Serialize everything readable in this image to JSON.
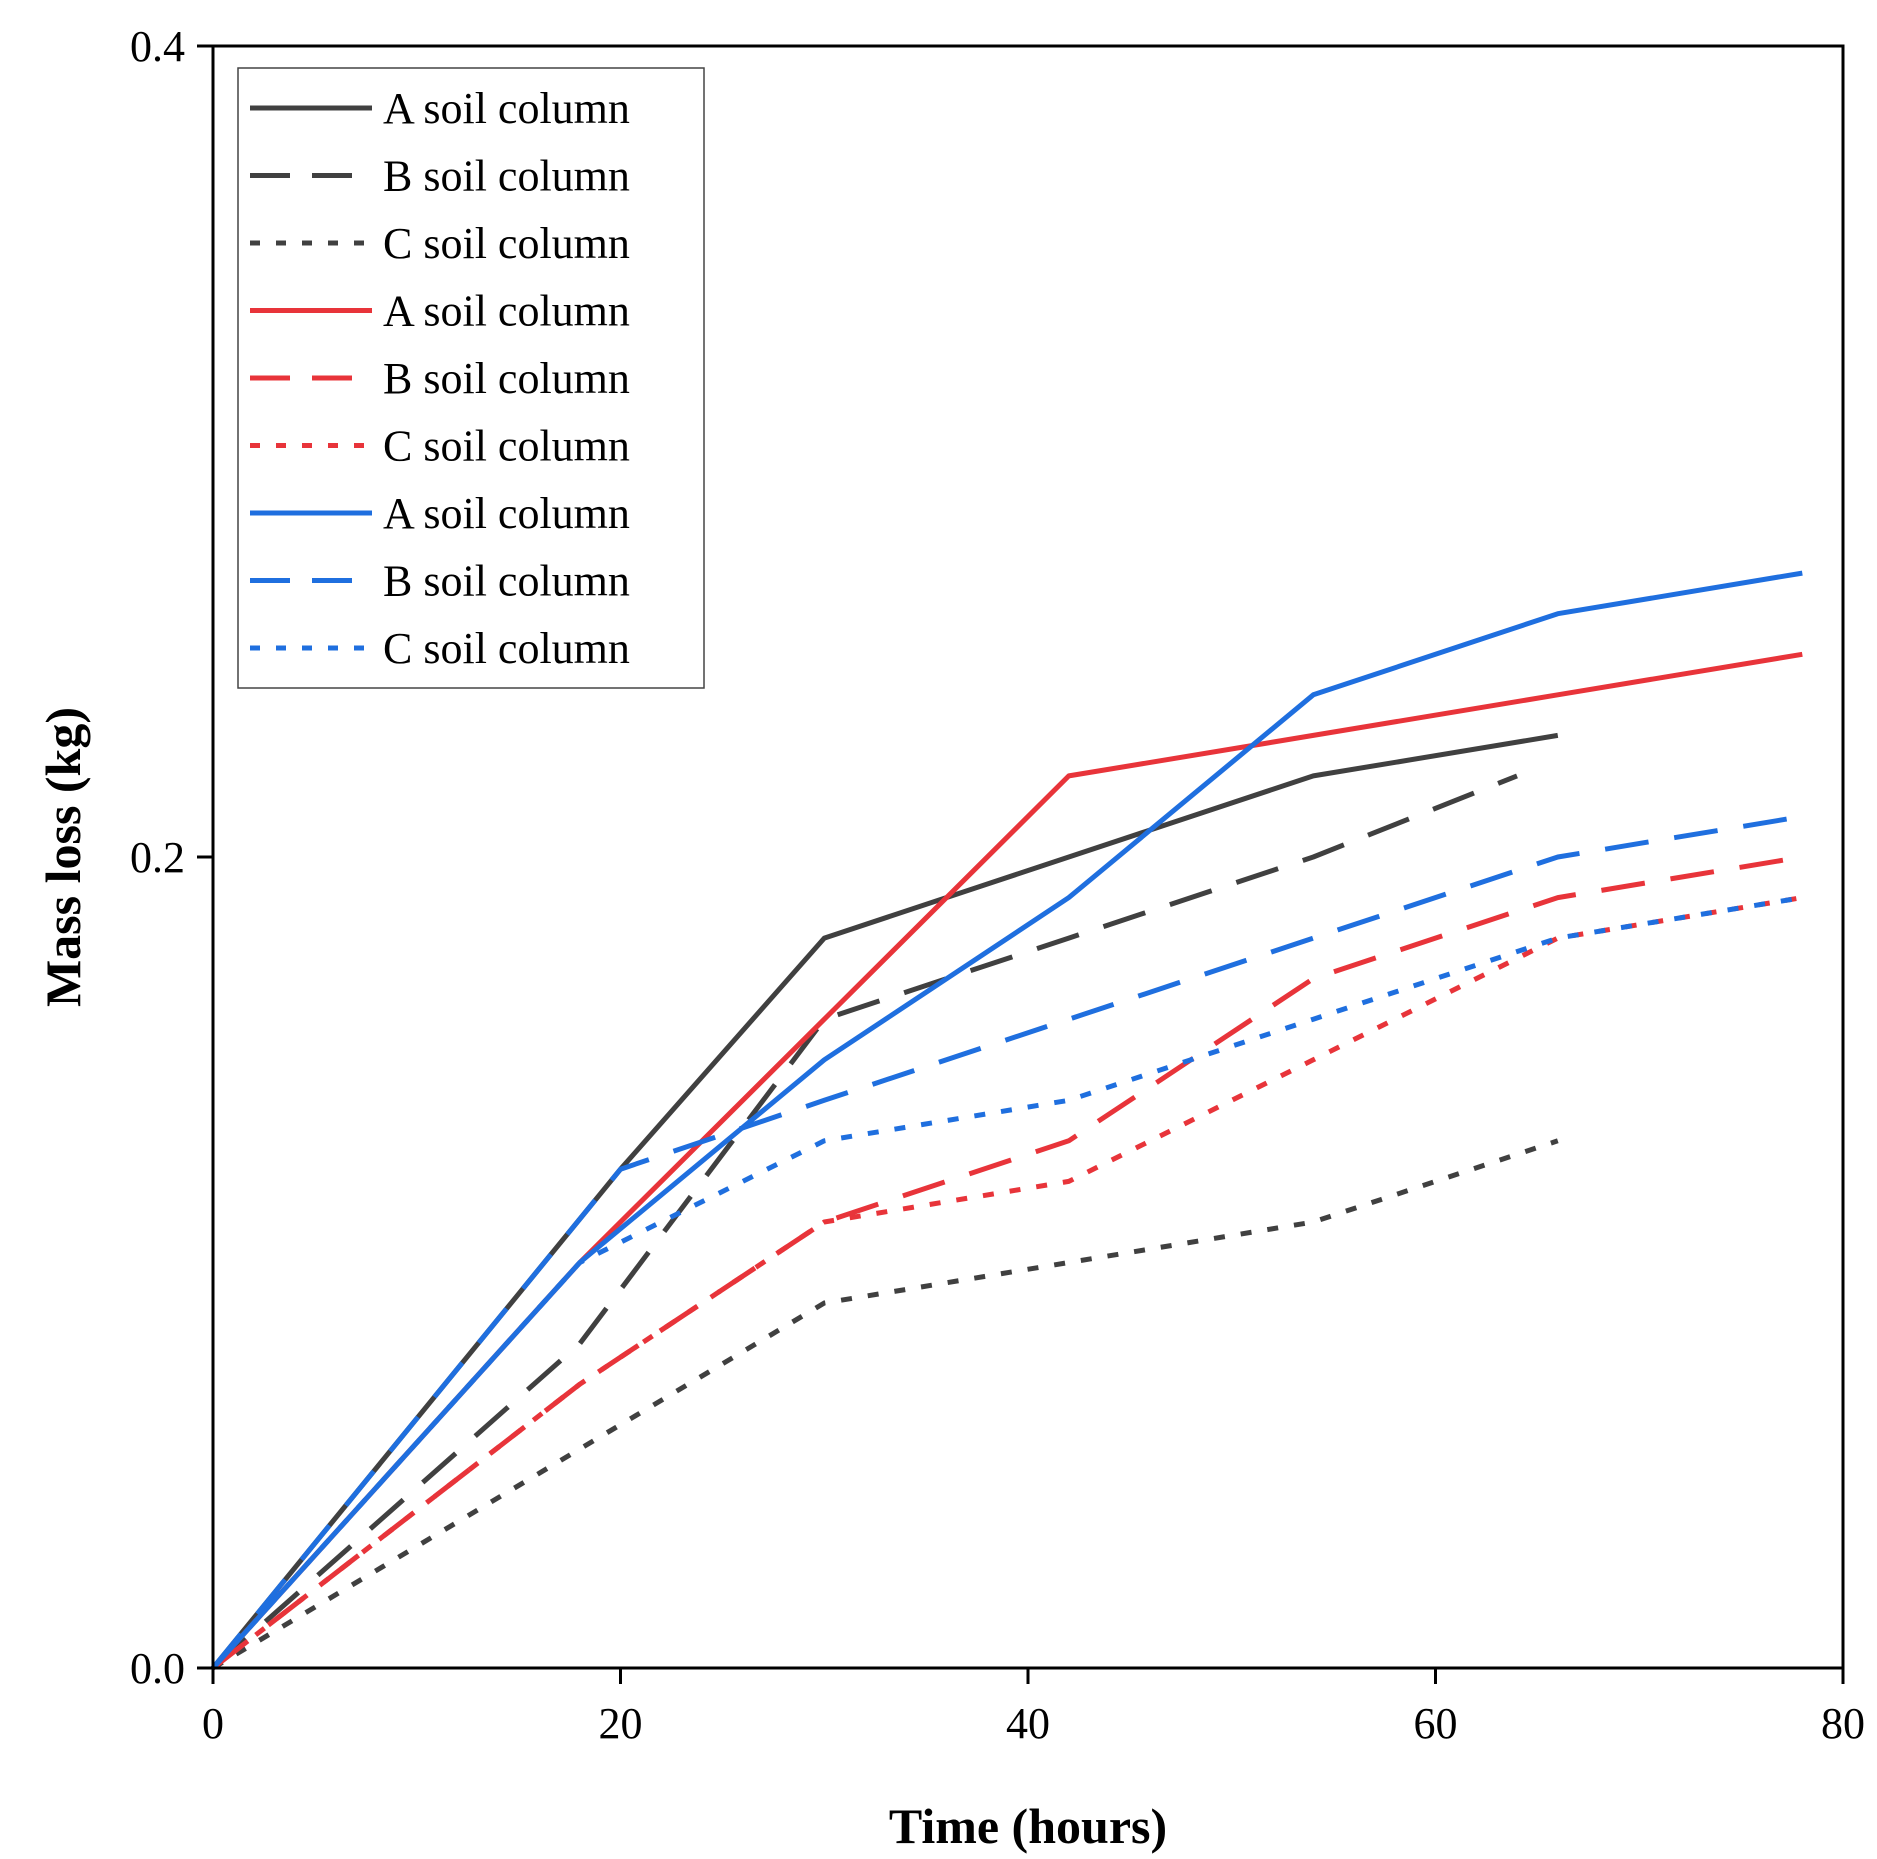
{
  "chart_data": {
    "type": "line",
    "title": "",
    "xlabel": "Time (hours)",
    "ylabel": "Mass loss (kg)",
    "xlim": [
      0,
      80
    ],
    "ylim": [
      0,
      0.4
    ],
    "xticks": [
      0,
      20,
      40,
      60,
      80
    ],
    "xtick_labels": [
      "0",
      "20",
      "40",
      "60",
      "80"
    ],
    "yticks": [
      0,
      0.2,
      0.4
    ],
    "ytick_labels": [
      "0.0",
      "0.2",
      "0.4"
    ],
    "grid": false,
    "legend_position": "top-left",
    "series": [
      {
        "name": "A soil column",
        "color": "#404040",
        "style": "solid",
        "x": [
          0,
          20,
          30,
          42,
          54,
          66
        ],
        "y": [
          0,
          0.123,
          0.18,
          0.2,
          0.22,
          0.23
        ]
      },
      {
        "name": "B soil column",
        "color": "#404040",
        "style": "dashed",
        "x": [
          0,
          18,
          30,
          42,
          54,
          64
        ],
        "y": [
          0,
          0.08,
          0.16,
          0.18,
          0.2,
          0.22
        ]
      },
      {
        "name": "C soil column",
        "color": "#404040",
        "style": "dotted",
        "x": [
          0,
          30,
          42,
          54,
          66
        ],
        "y": [
          0,
          0.09,
          0.1,
          0.11,
          0.13
        ]
      },
      {
        "name": "A soil column",
        "color": "#e8343a",
        "style": "solid",
        "x": [
          0,
          18,
          30,
          42,
          54,
          66,
          78
        ],
        "y": [
          0,
          0.1,
          0.16,
          0.22,
          0.23,
          0.24,
          0.25
        ]
      },
      {
        "name": "B soil column",
        "color": "#e8343a",
        "style": "dashed",
        "x": [
          0,
          18,
          30,
          42,
          54,
          66,
          78
        ],
        "y": [
          0,
          0.07,
          0.11,
          0.13,
          0.17,
          0.19,
          0.2
        ]
      },
      {
        "name": "C soil column",
        "color": "#e8343a",
        "style": "dotted",
        "x": [
          0,
          18,
          30,
          42,
          54,
          66,
          78
        ],
        "y": [
          0,
          0.07,
          0.11,
          0.12,
          0.15,
          0.18,
          0.19
        ]
      },
      {
        "name": "A soil column",
        "color": "#1f6fdf",
        "style": "solid",
        "x": [
          0,
          18,
          30,
          42,
          54,
          66,
          78
        ],
        "y": [
          0,
          0.1,
          0.15,
          0.19,
          0.24,
          0.26,
          0.27
        ]
      },
      {
        "name": "B soil column",
        "color": "#1f6fdf",
        "style": "dashed",
        "x": [
          0,
          20,
          30,
          42,
          54,
          66,
          78
        ],
        "y": [
          0,
          0.123,
          0.14,
          0.16,
          0.18,
          0.2,
          0.21
        ]
      },
      {
        "name": "C soil column",
        "color": "#1f6fdf",
        "style": "dotted",
        "x": [
          0,
          18,
          30,
          42,
          54,
          66,
          78
        ],
        "y": [
          0,
          0.1,
          0.13,
          0.14,
          0.16,
          0.18,
          0.19
        ]
      }
    ]
  }
}
